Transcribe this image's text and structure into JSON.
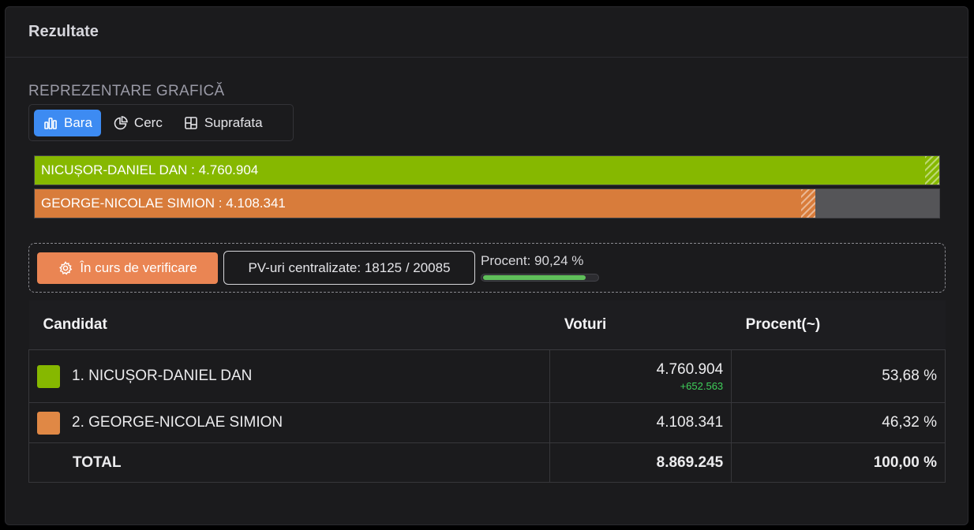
{
  "card": {
    "title": "Rezultate"
  },
  "chart_section": {
    "label": "REPREZENTARE GRAFICĂ",
    "tabs": [
      {
        "label": "Bara",
        "icon": "bar-chart-icon",
        "active": true
      },
      {
        "label": "Cerc",
        "icon": "pie-chart-icon",
        "active": false
      },
      {
        "label": "Suprafata",
        "icon": "treemap-icon",
        "active": false
      }
    ]
  },
  "chart_data": {
    "type": "bar",
    "orientation": "horizontal",
    "categories": [
      "NICUȘOR-DANIEL DAN",
      "GEORGE-NICOLAE SIMION"
    ],
    "values": [
      4760904,
      4108341
    ],
    "bar_labels": [
      "NICUȘOR-DANIEL DAN : 4.760.904",
      "GEORGE-NICOLAE SIMION : 4.108.341"
    ],
    "colors": [
      "#86b800",
      "#d87c3b"
    ],
    "xlim": [
      0,
      4760904
    ],
    "grid": false
  },
  "status": {
    "verify_label": "În curs de verificare",
    "pv_label": "PV-uri centralizate: 18125 / 20085",
    "procent_label": "Procent: 90,24 %",
    "progress_fraction": 0.9024
  },
  "table": {
    "headers": {
      "candidate": "Candidat",
      "votes": "Voturi",
      "percent": "Procent(~)"
    },
    "rows": [
      {
        "name": "1. NICUȘOR-DANIEL DAN",
        "votes": "4.760.904",
        "delta": "+652.563",
        "percent": "53,68 %",
        "color": "#86b800"
      },
      {
        "name": "2. GEORGE-NICOLAE SIMION",
        "votes": "4.108.341",
        "percent": "46,32 %",
        "color": "#e08845"
      }
    ],
    "total": {
      "label": "TOTAL",
      "votes": "8.869.245",
      "percent": "100,00 %"
    }
  }
}
